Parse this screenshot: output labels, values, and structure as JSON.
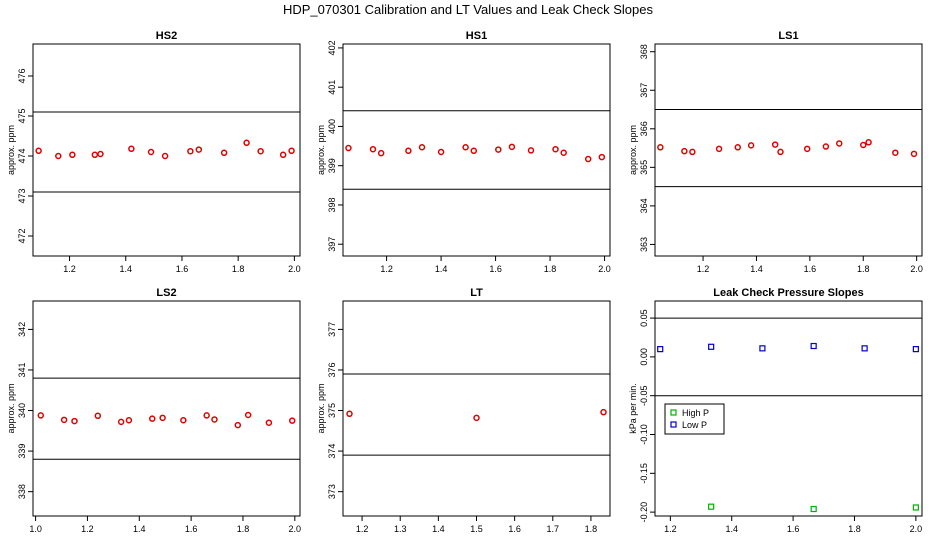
{
  "title": "HDP_070301  Calibration and LT Values and Leak Check Slopes",
  "colors": {
    "points": "#e00000",
    "high_p": "#00b000",
    "low_p": "#0000cc",
    "axis": "#000000"
  },
  "chart_data": [
    {
      "type": "scatter",
      "title": "HS2",
      "ylabel": "approx. ppm",
      "xlim": [
        1.07,
        2.02
      ],
      "ylim": [
        471.5,
        476.8
      ],
      "x_ticks": [
        "1.2",
        "1.4",
        "1.6",
        "1.8",
        "2.0"
      ],
      "y_ticks": [
        "472",
        "473",
        "474",
        "475",
        "476"
      ],
      "hlines": [
        475.1,
        473.1
      ],
      "x": [
        1.09,
        1.16,
        1.21,
        1.29,
        1.31,
        1.42,
        1.49,
        1.54,
        1.63,
        1.66,
        1.75,
        1.83,
        1.88,
        1.96,
        1.99
      ],
      "y": [
        474.13,
        474.0,
        474.03,
        474.03,
        474.05,
        474.18,
        474.1,
        474.0,
        474.12,
        474.16,
        474.08,
        474.33,
        474.12,
        474.03,
        474.13
      ]
    },
    {
      "type": "scatter",
      "title": "HS1",
      "ylabel": "approx. ppm",
      "xlim": [
        1.04,
        2.02
      ],
      "ylim": [
        396.7,
        402.1
      ],
      "x_ticks": [
        "1.2",
        "1.4",
        "1.6",
        "1.8",
        "2.0"
      ],
      "y_ticks": [
        "397",
        "398",
        "399",
        "400",
        "401",
        "402"
      ],
      "hlines": [
        400.4,
        398.4
      ],
      "x": [
        1.06,
        1.15,
        1.18,
        1.28,
        1.33,
        1.4,
        1.49,
        1.52,
        1.61,
        1.66,
        1.73,
        1.82,
        1.85,
        1.94,
        1.99
      ],
      "y": [
        399.45,
        399.42,
        399.32,
        399.38,
        399.47,
        399.35,
        399.47,
        399.38,
        399.41,
        399.48,
        399.39,
        399.42,
        399.33,
        399.17,
        399.22
      ]
    },
    {
      "type": "scatter",
      "title": "LS1",
      "ylabel": "approx. ppm",
      "xlim": [
        1.02,
        2.02
      ],
      "ylim": [
        362.7,
        368.2
      ],
      "x_ticks": [
        "1.2",
        "1.4",
        "1.6",
        "1.8",
        "2.0"
      ],
      "y_ticks": [
        "363",
        "364",
        "365",
        "366",
        "367",
        "368"
      ],
      "hlines": [
        366.5,
        364.5
      ],
      "x": [
        1.04,
        1.13,
        1.16,
        1.26,
        1.33,
        1.38,
        1.47,
        1.49,
        1.59,
        1.66,
        1.71,
        1.8,
        1.82,
        1.92,
        1.99
      ],
      "y": [
        365.52,
        365.42,
        365.4,
        365.48,
        365.52,
        365.57,
        365.59,
        365.4,
        365.48,
        365.54,
        365.62,
        365.58,
        365.65,
        365.38,
        365.35
      ]
    },
    {
      "type": "scatter",
      "title": "LS2",
      "ylabel": "approx. ppm",
      "xlim": [
        0.99,
        2.02
      ],
      "ylim": [
        337.4,
        342.7
      ],
      "x_ticks": [
        "1.0",
        "1.2",
        "1.4",
        "1.6",
        "1.8",
        "2.0"
      ],
      "y_ticks": [
        "338",
        "339",
        "340",
        "341",
        "342"
      ],
      "hlines": [
        340.8,
        338.8
      ],
      "x": [
        1.02,
        1.11,
        1.15,
        1.24,
        1.33,
        1.36,
        1.45,
        1.49,
        1.57,
        1.66,
        1.69,
        1.78,
        1.82,
        1.9,
        1.99
      ],
      "y": [
        339.88,
        339.77,
        339.74,
        339.87,
        339.72,
        339.76,
        339.8,
        339.82,
        339.76,
        339.88,
        339.78,
        339.64,
        339.89,
        339.7,
        339.75
      ]
    },
    {
      "type": "scatter",
      "title": "LT",
      "ylabel": "approx. ppm",
      "xlim": [
        1.15,
        1.85
      ],
      "ylim": [
        372.4,
        377.7
      ],
      "x_ticks": [
        "1.2",
        "1.3",
        "1.4",
        "1.5",
        "1.6",
        "1.7",
        "1.8"
      ],
      "y_ticks": [
        "373",
        "374",
        "375",
        "376",
        "377"
      ],
      "hlines": [
        375.9,
        373.9
      ],
      "x": [
        1.167,
        1.5,
        1.833
      ],
      "y": [
        374.92,
        374.82,
        374.96
      ]
    },
    {
      "type": "scatter",
      "title": "Leak Check Pressure Slopes",
      "ylabel": "kPa per min.",
      "xlim": [
        1.15,
        2.02
      ],
      "ylim": [
        -0.205,
        0.072
      ],
      "x_ticks": [
        "1.2",
        "1.4",
        "1.6",
        "1.8",
        "2.0"
      ],
      "y_ticks": [
        "-0.20",
        "-0.15",
        "-0.10",
        "-0.05",
        "0.00",
        "0.05"
      ],
      "hlines": [
        0.05,
        -0.05
      ],
      "legend": {
        "position": "left",
        "entries": [
          "High P",
          "Low P"
        ]
      },
      "series": [
        {
          "name": "High P",
          "x": [
            1.333,
            1.667,
            2.0
          ],
          "y": [
            -0.193,
            -0.196,
            -0.194
          ]
        },
        {
          "name": "Low P",
          "x": [
            1.167,
            1.333,
            1.5,
            1.667,
            1.833,
            2.0
          ],
          "y": [
            0.01,
            0.013,
            0.011,
            0.014,
            0.011,
            0.01
          ]
        }
      ]
    }
  ]
}
